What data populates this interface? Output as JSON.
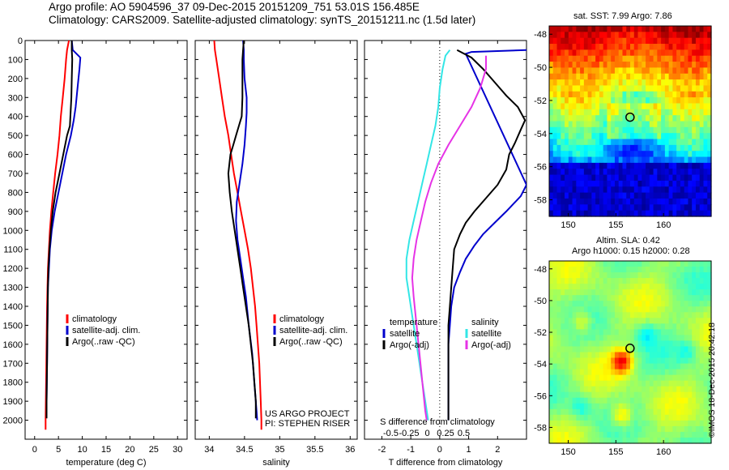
{
  "header": {
    "line1": "Argo profile: AO 5904596_37 09-Dec-2015 20151209_751 53.01S 156.485E",
    "line2": "Climatology: CARS2009. Satellite-adjusted climatology: synTS_20151211.nc (1.5d later)"
  },
  "project": {
    "line1": "US ARGO PROJECT",
    "line2": "PI: STEPHEN RISER"
  },
  "copyright": "©IMOS 18-Dec-2015 20:42:18",
  "colors": {
    "climatology": "#ff0000",
    "satellite": "#0000cc",
    "argo": "#000000",
    "sat_sal": "#33e6e6",
    "argo_sal": "#e633e6"
  },
  "chart_data": [
    {
      "type": "line",
      "panel": "temperature",
      "xlabel": "temperature (deg C)",
      "x_ticks": [
        "0",
        "5",
        "10",
        "15",
        "20",
        "25",
        "30"
      ],
      "xlim": [
        -2,
        32
      ],
      "ylim": [
        2100,
        0
      ],
      "y_ticks": [
        "0",
        "100",
        "200",
        "300",
        "400",
        "500",
        "600",
        "700",
        "800",
        "900",
        "1000",
        "1100",
        "1200",
        "1300",
        "1400",
        "1500",
        "1600",
        "1700",
        "1800",
        "1900",
        "2000"
      ],
      "legend": [
        "climatology",
        "satellite-adj. clim.",
        "Argo(..raw -QC)"
      ],
      "series": [
        {
          "name": "climatology",
          "color": "#ff0000",
          "points": [
            [
              7.2,
              0
            ],
            [
              6.8,
              50
            ],
            [
              6.6,
              100
            ],
            [
              6.3,
              200
            ],
            [
              5.9,
              300
            ],
            [
              5.5,
              400
            ],
            [
              5.2,
              500
            ],
            [
              4.8,
              600
            ],
            [
              4.3,
              700
            ],
            [
              3.9,
              800
            ],
            [
              3.5,
              900
            ],
            [
              3.2,
              1000
            ],
            [
              3.0,
              1100
            ],
            [
              2.8,
              1200
            ],
            [
              2.7,
              1300
            ],
            [
              2.6,
              1400
            ],
            [
              2.5,
              1600
            ],
            [
              2.4,
              1800
            ],
            [
              2.3,
              2000
            ],
            [
              2.3,
              2050
            ]
          ]
        },
        {
          "name": "satellite-adj. clim.",
          "color": "#0000cc",
          "points": [
            [
              7.8,
              0
            ],
            [
              8.0,
              50
            ],
            [
              9.6,
              90
            ],
            [
              9.4,
              150
            ],
            [
              9.0,
              250
            ],
            [
              8.6,
              350
            ],
            [
              8.2,
              420
            ],
            [
              7.6,
              500
            ],
            [
              6.6,
              600
            ],
            [
              5.8,
              700
            ],
            [
              5.0,
              800
            ],
            [
              4.2,
              900
            ],
            [
              3.6,
              1000
            ],
            [
              3.2,
              1100
            ],
            [
              3.0,
              1200
            ],
            [
              2.8,
              1300
            ],
            [
              2.7,
              1500
            ],
            [
              2.6,
              1700
            ],
            [
              2.5,
              1900
            ],
            [
              2.5,
              1980
            ]
          ]
        },
        {
          "name": "Argo(..raw -QC)",
          "color": "#000000",
          "points": [
            [
              7.8,
              0
            ],
            [
              7.8,
              50
            ],
            [
              7.9,
              100
            ],
            [
              7.8,
              200
            ],
            [
              7.7,
              300
            ],
            [
              7.5,
              400
            ],
            [
              7.4,
              450
            ],
            [
              6.8,
              500
            ],
            [
              6.0,
              600
            ],
            [
              5.2,
              700
            ],
            [
              4.4,
              800
            ],
            [
              3.8,
              900
            ],
            [
              3.4,
              1000
            ],
            [
              3.1,
              1100
            ],
            [
              2.9,
              1200
            ],
            [
              2.8,
              1300
            ],
            [
              2.7,
              1500
            ],
            [
              2.6,
              1700
            ],
            [
              2.5,
              1900
            ],
            [
              2.5,
              1990
            ]
          ]
        }
      ]
    },
    {
      "type": "line",
      "panel": "salinity",
      "xlabel": "salinity",
      "x_ticks": [
        "34",
        "34.5",
        "35",
        "35.5",
        "36"
      ],
      "xlim": [
        33.8,
        36.1
      ],
      "ylim": [
        2100,
        0
      ],
      "legend": [
        "climatology",
        "satellite-adj. clim.",
        "Argo(..raw -QC)"
      ],
      "series": [
        {
          "name": "climatology",
          "color": "#ff0000",
          "points": [
            [
              34.07,
              0
            ],
            [
              34.08,
              50
            ],
            [
              34.1,
              100
            ],
            [
              34.14,
              200
            ],
            [
              34.18,
              300
            ],
            [
              34.22,
              400
            ],
            [
              34.27,
              500
            ],
            [
              34.31,
              600
            ],
            [
              34.35,
              700
            ],
            [
              34.4,
              800
            ],
            [
              34.45,
              900
            ],
            [
              34.5,
              1000
            ],
            [
              34.55,
              1100
            ],
            [
              34.59,
              1200
            ],
            [
              34.62,
              1300
            ],
            [
              34.65,
              1400
            ],
            [
              34.67,
              1500
            ],
            [
              34.69,
              1600
            ],
            [
              34.71,
              1700
            ],
            [
              34.72,
              1800
            ],
            [
              34.73,
              1900
            ],
            [
              34.74,
              2000
            ],
            [
              34.74,
              2050
            ]
          ]
        },
        {
          "name": "satellite-adj. clim.",
          "color": "#0000cc",
          "points": [
            [
              34.48,
              0
            ],
            [
              34.49,
              50
            ],
            [
              34.49,
              100
            ],
            [
              34.5,
              200
            ],
            [
              34.53,
              300
            ],
            [
              34.53,
              380
            ],
            [
              34.52,
              450
            ],
            [
              34.5,
              550
            ],
            [
              34.47,
              650
            ],
            [
              34.43,
              750
            ],
            [
              34.39,
              850
            ],
            [
              34.38,
              950
            ],
            [
              34.4,
              1050
            ],
            [
              34.44,
              1150
            ],
            [
              34.48,
              1250
            ],
            [
              34.52,
              1350
            ],
            [
              34.56,
              1500
            ],
            [
              34.61,
              1650
            ],
            [
              34.64,
              1800
            ],
            [
              34.67,
              1950
            ],
            [
              34.68,
              2000
            ]
          ]
        },
        {
          "name": "Argo(..raw -QC)",
          "color": "#000000",
          "points": [
            [
              34.49,
              0
            ],
            [
              34.48,
              50
            ],
            [
              34.47,
              100
            ],
            [
              34.47,
              200
            ],
            [
              34.47,
              300
            ],
            [
              34.46,
              400
            ],
            [
              34.42,
              450
            ],
            [
              34.38,
              500
            ],
            [
              34.34,
              550
            ],
            [
              34.3,
              600
            ],
            [
              34.27,
              700
            ],
            [
              34.29,
              800
            ],
            [
              34.32,
              900
            ],
            [
              34.36,
              1000
            ],
            [
              34.4,
              1100
            ],
            [
              34.44,
              1200
            ],
            [
              34.48,
              1300
            ],
            [
              34.52,
              1400
            ],
            [
              34.56,
              1500
            ],
            [
              34.59,
              1600
            ],
            [
              34.62,
              1700
            ],
            [
              34.64,
              1800
            ],
            [
              34.66,
              1900
            ],
            [
              34.66,
              1990
            ]
          ]
        }
      ]
    },
    {
      "type": "line",
      "panel": "difference",
      "xlabel": "T difference from climatology",
      "x_ticks": [
        "-2",
        "-1",
        "0",
        "1",
        "2"
      ],
      "xlim": [
        -2.6,
        3.0
      ],
      "top_label": "S difference from climatology",
      "top_ticks": [
        "-0.5",
        "-0.25",
        "0",
        "0.25",
        "0.5"
      ],
      "ylim": [
        2100,
        0
      ],
      "legend_temperature": {
        "heading": "temperature",
        "items": [
          "satellite",
          "Argo(-adj)"
        ]
      },
      "legend_salinity": {
        "heading": "salinity",
        "items": [
          "satellite",
          "Argo(-adj)"
        ]
      },
      "series": [
        {
          "name": "satellite",
          "group": "temperature",
          "color": "#0000cc",
          "points": [
            [
              3.0,
              50
            ],
            [
              1.1,
              60
            ],
            [
              0.9,
              70
            ],
            [
              3.0,
              760
            ],
            [
              2.8,
              820
            ],
            [
              2.3,
              900
            ],
            [
              1.9,
              960
            ],
            [
              1.5,
              1020
            ],
            [
              1.2,
              1080
            ],
            [
              0.9,
              1150
            ],
            [
              0.7,
              1220
            ],
            [
              0.5,
              1300
            ],
            [
              0.4,
              1400
            ],
            [
              0.35,
              1500
            ],
            [
              0.3,
              1600
            ],
            [
              0.3,
              1800
            ],
            [
              0.3,
              2000
            ]
          ]
        },
        {
          "name": "Argo(-adj)",
          "group": "temperature",
          "color": "#000000",
          "points": [
            [
              0.6,
              50
            ],
            [
              1.1,
              90
            ],
            [
              1.5,
              150
            ],
            [
              1.9,
              220
            ],
            [
              2.3,
              290
            ],
            [
              2.7,
              350
            ],
            [
              2.95,
              420
            ],
            [
              2.8,
              470
            ],
            [
              2.6,
              540
            ],
            [
              2.4,
              600
            ],
            [
              2.3,
              680
            ],
            [
              2.0,
              760
            ],
            [
              1.6,
              830
            ],
            [
              1.2,
              900
            ],
            [
              0.9,
              960
            ],
            [
              0.7,
              1020
            ],
            [
              0.5,
              1100
            ],
            [
              0.45,
              1200
            ],
            [
              0.4,
              1300
            ],
            [
              0.35,
              1400
            ],
            [
              0.3,
              1500
            ],
            [
              0.3,
              1700
            ],
            [
              0.3,
              1900
            ],
            [
              0.3,
              2000
            ]
          ]
        },
        {
          "name": "satellite",
          "group": "salinity",
          "color": "#33e6e6",
          "points": [
            [
              0.35,
              50
            ],
            [
              0.2,
              80
            ],
            [
              0.1,
              150
            ],
            [
              0.0,
              250
            ],
            [
              -0.05,
              350
            ],
            [
              -0.15,
              450
            ],
            [
              -0.3,
              550
            ],
            [
              -0.45,
              650
            ],
            [
              -0.6,
              750
            ],
            [
              -0.75,
              850
            ],
            [
              -0.9,
              950
            ],
            [
              -1.05,
              1050
            ],
            [
              -1.15,
              1150
            ],
            [
              -1.15,
              1250
            ],
            [
              -1.05,
              1350
            ],
            [
              -0.95,
              1450
            ],
            [
              -0.85,
              1550
            ],
            [
              -0.75,
              1650
            ],
            [
              -0.65,
              1750
            ],
            [
              -0.55,
              1850
            ],
            [
              -0.45,
              1950
            ],
            [
              -0.4,
              2000
            ]
          ]
        },
        {
          "name": "Argo(-adj)",
          "group": "salinity",
          "color": "#e633e6",
          "points": [
            [
              1.6,
              80
            ],
            [
              1.6,
              150
            ],
            [
              1.4,
              250
            ],
            [
              1.1,
              350
            ],
            [
              0.7,
              450
            ],
            [
              0.3,
              550
            ],
            [
              -0.05,
              650
            ],
            [
              -0.3,
              750
            ],
            [
              -0.5,
              850
            ],
            [
              -0.65,
              950
            ],
            [
              -0.8,
              1050
            ],
            [
              -0.9,
              1150
            ],
            [
              -0.95,
              1250
            ],
            [
              -0.9,
              1350
            ],
            [
              -0.8,
              1500
            ],
            [
              -0.7,
              1650
            ],
            [
              -0.6,
              1800
            ],
            [
              -0.5,
              1950
            ],
            [
              -0.45,
              2000
            ]
          ]
        }
      ]
    },
    {
      "type": "heatmap",
      "panel": "sst-map",
      "title": "sat. SST: 7.99 Argo: 7.86",
      "x_ticks": [
        "150",
        "155",
        "160"
      ],
      "y_ticks": [
        "-48",
        "-50",
        "-52",
        "-54",
        "-56",
        "-58"
      ],
      "xlim": [
        148,
        165
      ],
      "ylim": [
        -59,
        -47.5
      ],
      "marker": {
        "lon": 156.485,
        "lat": -53.01
      }
    },
    {
      "type": "heatmap",
      "panel": "sla-map",
      "title": "Altim. SLA: 0.42",
      "subtitle": "Argo h1000: 0.15 h2000: 0.28",
      "x_ticks": [
        "150",
        "155",
        "160"
      ],
      "y_ticks": [
        "-48",
        "-50",
        "-52",
        "-54",
        "-56",
        "-58"
      ],
      "xlim": [
        148,
        165
      ],
      "ylim": [
        -59,
        -47.5
      ],
      "marker": {
        "lon": 156.485,
        "lat": -53.01
      }
    }
  ]
}
